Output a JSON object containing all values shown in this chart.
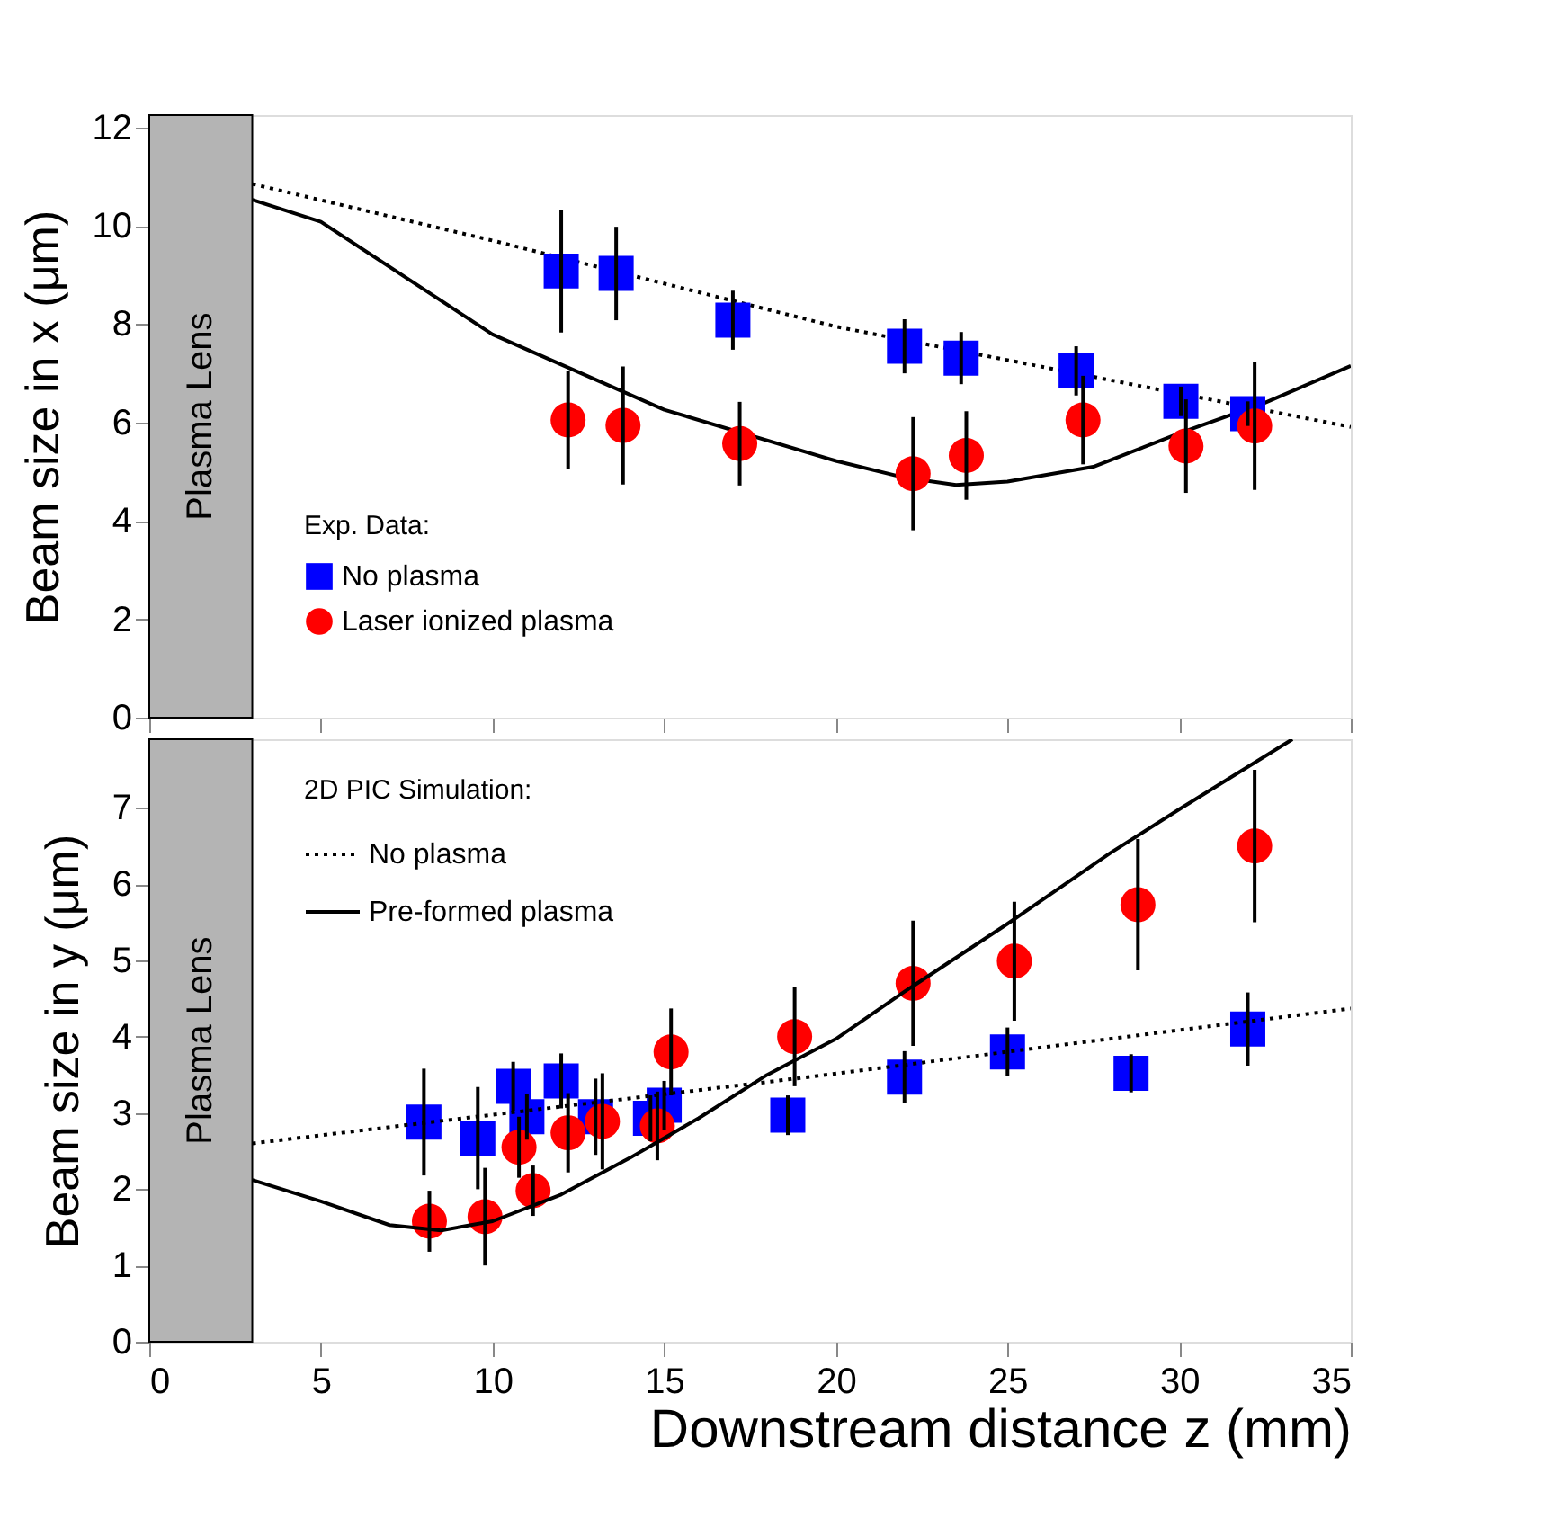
{
  "chart_data": [
    {
      "type": "scatter",
      "ylabel": "Beam size in x (μm)",
      "legend_title": "Exp. Data:",
      "legend": "bottom left",
      "tick_labels": "y",
      "grid": false,
      "xlim": [
        0,
        35
      ],
      "xticks": [
        0,
        5,
        10,
        15,
        20,
        25,
        30,
        35
      ],
      "ylim": [
        0,
        12.25
      ],
      "yticks": [
        0,
        2,
        4,
        6,
        8,
        10,
        12
      ],
      "bands": [
        {
          "axis": "x",
          "from": 0,
          "to": 3,
          "label": "Plasma Lens",
          "color": "#b4b4b4"
        }
      ],
      "series": [
        {
          "name": "No plasma",
          "color": "#0000ff",
          "marker": "square",
          "x": [
            12.0,
            13.6,
            17.0,
            22.0,
            23.65,
            27.0,
            30.05,
            32.0
          ],
          "values": [
            9.08,
            9.03,
            8.08,
            7.55,
            7.31,
            7.05,
            6.43,
            6.18
          ],
          "errors": [
            1.25,
            0.95,
            0.6,
            0.55,
            0.53,
            0.5,
            0.3,
            0.25
          ]
        },
        {
          "name": "Laser ionized plasma",
          "color": "#ff0000",
          "marker": "circle",
          "x": [
            12.2,
            13.8,
            17.2,
            22.25,
            23.8,
            27.2,
            30.2,
            32.2
          ],
          "values": [
            6.05,
            5.94,
            5.57,
            4.96,
            5.33,
            6.05,
            5.52,
            5.93
          ],
          "errors": [
            1.0,
            1.2,
            0.85,
            1.15,
            0.9,
            0.9,
            0.95,
            1.3
          ]
        },
        {
          "type": "line",
          "color": "#000000",
          "marker": "none",
          "line_style": "dotted",
          "x": [
            3,
            10,
            20,
            30,
            35
          ],
          "values": [
            10.85,
            9.7,
            7.95,
            6.59,
            5.91
          ]
        },
        {
          "type": "line",
          "color": "#000000",
          "marker": "none",
          "line_style": "solid",
          "x": [
            3,
            5,
            10,
            15,
            20,
            22,
            23.5,
            25,
            27.5,
            30,
            32.5,
            35
          ],
          "values": [
            10.53,
            10.08,
            7.79,
            6.26,
            5.22,
            4.88,
            4.73,
            4.8,
            5.1,
            5.78,
            6.4,
            7.15
          ]
        }
      ]
    },
    {
      "type": "scatter",
      "xlabel": "Downstream distance z (mm)",
      "ylabel": "Beam size in y (μm)",
      "legend_title": "2D PIC Simulation:",
      "legend": "top left",
      "grid": false,
      "xlim": [
        0,
        35
      ],
      "xticks": [
        0,
        5,
        10,
        15,
        20,
        25,
        30,
        35
      ],
      "ylim": [
        0,
        7.9
      ],
      "yticks": [
        0,
        1,
        2,
        3,
        4,
        5,
        6,
        7
      ],
      "bands": [
        {
          "axis": "x",
          "from": 0,
          "to": 3,
          "label": "Plasma Lens",
          "color": "#b4b4b4"
        }
      ],
      "series": [
        {
          "color": "#0000ff",
          "marker": "square",
          "x": [
            8.0,
            9.57,
            10.6,
            11.0,
            12.0,
            13.0,
            14.6,
            15.0,
            18.6,
            22.0,
            25.0,
            28.6,
            32.0
          ],
          "values": [
            2.88,
            2.67,
            3.35,
            2.95,
            3.42,
            2.95,
            2.93,
            3.1,
            2.97,
            3.47,
            3.8,
            3.52,
            4.1
          ],
          "errors": [
            0.7,
            0.67,
            0.32,
            0.3,
            0.36,
            0.5,
            0.3,
            0.32,
            0.26,
            0.34,
            0.32,
            0.25,
            0.48
          ]
        },
        {
          "color": "#ff0000",
          "marker": "circle",
          "x": [
            8.16,
            9.78,
            10.77,
            11.18,
            12.2,
            13.2,
            14.8,
            15.2,
            18.8,
            22.25,
            25.2,
            28.8,
            32.2
          ],
          "values": [
            1.58,
            1.64,
            2.55,
            1.98,
            2.74,
            2.89,
            2.83,
            3.8,
            4.0,
            4.7,
            4.99,
            5.73,
            6.5
          ],
          "errors": [
            0.4,
            0.64,
            0.4,
            0.33,
            0.52,
            0.63,
            0.45,
            0.57,
            0.65,
            0.82,
            0.78,
            0.86,
            1.0
          ]
        },
        {
          "name": "No plasma",
          "type": "line",
          "color": "#000000",
          "marker": "none",
          "line_style": "dotted",
          "x": [
            3,
            19,
            35
          ],
          "values": [
            2.6,
            3.46,
            4.37
          ]
        },
        {
          "name": "Pre-formed plasma",
          "type": "line",
          "color": "#000000",
          "marker": "none",
          "line_style": "solid",
          "x": [
            3,
            5,
            7,
            8.5,
            10,
            12,
            14,
            16,
            18,
            20,
            22,
            25,
            28,
            30,
            33.3
          ],
          "values": [
            2.12,
            1.84,
            1.53,
            1.46,
            1.58,
            1.93,
            2.41,
            2.93,
            3.5,
            3.97,
            4.59,
            5.48,
            6.41,
            6.98,
            7.9
          ]
        }
      ]
    }
  ]
}
